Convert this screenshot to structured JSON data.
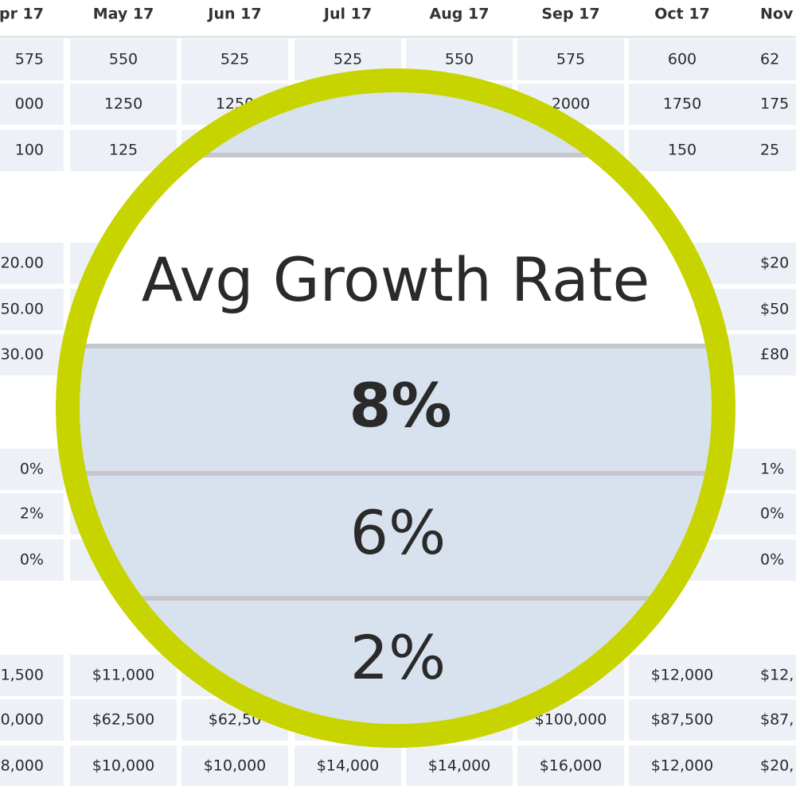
{
  "header": {
    "columns": [
      "pr 17",
      "May 17",
      "Jun 17",
      "Jul 17",
      "Aug 17",
      "Sep 17",
      "Oct 17",
      "Nov"
    ]
  },
  "table": {
    "rows": [
      [
        "575",
        "550",
        "525",
        "525",
        "550",
        "575",
        "600",
        "62"
      ],
      [
        "000",
        "1250",
        "1250",
        null,
        null,
        "2000",
        "1750",
        "175"
      ],
      [
        "100",
        "125",
        null,
        null,
        null,
        null,
        "150",
        "25"
      ],
      [
        "20.00",
        null,
        null,
        null,
        null,
        null,
        null,
        "$20"
      ],
      [
        "50.00",
        null,
        null,
        null,
        null,
        null,
        null,
        "$50"
      ],
      [
        "30.00",
        null,
        null,
        null,
        null,
        null,
        null,
        "£80"
      ],
      [
        "0%",
        null,
        null,
        null,
        null,
        null,
        null,
        "1%"
      ],
      [
        "2%",
        null,
        null,
        null,
        null,
        null,
        null,
        "0%"
      ],
      [
        "0%",
        null,
        null,
        null,
        null,
        null,
        null,
        "0%"
      ],
      [
        "1,500",
        "$11,000",
        null,
        null,
        null,
        null,
        "$12,000",
        "$12,"
      ],
      [
        "0,000",
        "$62,500",
        "$62,50",
        null,
        null,
        "$100,000",
        "$87,500",
        "$87,"
      ],
      [
        "8,000",
        "$10,000",
        "$10,000",
        "$14,000",
        "$14,000",
        "$16,000",
        "$12,000",
        "$20,"
      ]
    ]
  },
  "magnifier": {
    "title": "Avg Growth Rate",
    "values": [
      "8%",
      "6%",
      "2%"
    ]
  }
}
